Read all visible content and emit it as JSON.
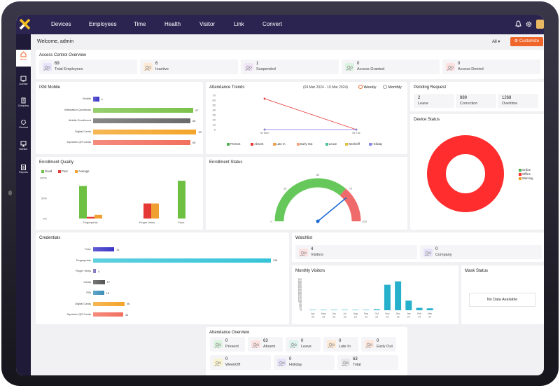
{
  "nav": {
    "devices": "Devices",
    "employees": "Employees",
    "time": "Time",
    "health": "Health",
    "visitor": "Visitor",
    "link": "Link",
    "convert": "Convert"
  },
  "sidebar": {
    "items": [
      {
        "label": "Home"
      },
      {
        "label": "License"
      },
      {
        "label": "Company"
      },
      {
        "label": "General"
      },
      {
        "label": "Monitor"
      },
      {
        "label": "Reports"
      }
    ]
  },
  "header": {
    "greeting": "Welcome, admin",
    "filter": "All",
    "customize": "Customize"
  },
  "access": {
    "title": "Access Control Overview",
    "stats": [
      {
        "value": "69",
        "label": "Total Employees",
        "color": "#e6e3fa",
        "icon": "users-icon"
      },
      {
        "value": "6",
        "label": "Inactive",
        "color": "#fde9d4",
        "icon": "users-icon"
      },
      {
        "value": "1",
        "label": "Suspended",
        "color": "#f0e4f7",
        "icon": "users-icon"
      },
      {
        "value": "0",
        "label": "Access Granted",
        "color": "#dcf4df",
        "icon": "users-icon"
      },
      {
        "value": "0",
        "label": "Access Denied",
        "color": "#fde1e1",
        "icon": "users-icon"
      }
    ]
  },
  "ixm": {
    "title": "IXM Mobile",
    "chart_data": {
      "type": "bar",
      "orientation": "horizontal",
      "categories": [
        "Mobile",
        "Attestation Questions",
        "Mobile Enrollment",
        "Digital Cards",
        "Dynamic QR Cards"
      ],
      "values": [
        4,
        67,
        65,
        69,
        65
      ],
      "xlim": [
        0,
        80
      ],
      "colors": [
        "#3b35c6",
        "#7cc24a",
        "#6a6a6a",
        "#f4a52a",
        "#f26f5f"
      ]
    }
  },
  "attendance": {
    "title": "Attendance Trends",
    "range": "(04 Mar 2024 - 10 Mar 2024)",
    "toggle": [
      "Weekly",
      "Monthly"
    ],
    "chart_data": {
      "type": "line",
      "x": [
        "04 Mon",
        "05 Tue"
      ],
      "ylim": [
        0,
        70
      ],
      "yticks": [
        "70",
        "60",
        "50",
        "40",
        "30",
        "20",
        "10",
        "0"
      ],
      "series": [
        {
          "name": "Present",
          "values": [
            0,
            0
          ],
          "color": "#4caf50"
        },
        {
          "name": "Absent",
          "values": [
            63,
            0
          ],
          "color": "#e53935"
        },
        {
          "name": "Late In",
          "values": [
            0,
            0
          ],
          "color": "#f0a050"
        },
        {
          "name": "Early Out",
          "values": [
            0,
            0
          ],
          "color": "#f4a07a"
        },
        {
          "name": "Leave",
          "values": [
            0,
            0
          ],
          "color": "#4fc3a0"
        },
        {
          "name": "WeekOff",
          "values": [
            0,
            0
          ],
          "color": "#e0c040"
        },
        {
          "name": "Holiday",
          "values": [
            0,
            0
          ],
          "color": "#8888ee"
        }
      ]
    }
  },
  "pending": {
    "title": "Pending Request",
    "items": [
      {
        "value": "2",
        "label": "Leave"
      },
      {
        "value": "889",
        "label": "Correction"
      },
      {
        "value": "1268",
        "label": "Overtime"
      }
    ]
  },
  "device": {
    "title": "Device Status",
    "chart_data": {
      "type": "pie",
      "labels": [
        "Online",
        "Offline",
        "Warning"
      ],
      "values": [
        0,
        100,
        0
      ],
      "colors": [
        "#4caf50",
        "#ff2d2d",
        "#f0a030"
      ]
    }
  },
  "enroll": {
    "title": "Enrollment Quality",
    "chart_data": {
      "type": "bar",
      "categories": [
        "Fingerprints",
        "Finger Veins",
        "Face"
      ],
      "yticks": [
        "100%",
        "50%",
        "0%"
      ],
      "ylim": [
        0,
        100
      ],
      "series": [
        {
          "name": "Good",
          "values": [
            80,
            0,
            93
          ],
          "color": "#6dc041"
        },
        {
          "name": "Poor",
          "values": [
            4,
            37,
            0
          ],
          "color": "#e53935"
        },
        {
          "name": "Average",
          "values": [
            9,
            37,
            0
          ],
          "color": "#f0a030"
        }
      ]
    }
  },
  "estatus": {
    "title": "Enrollment Status",
    "chart_data": {
      "type": "gauge",
      "value": 78,
      "min": 0,
      "max": 100,
      "ticks": [
        "0",
        "25",
        "50",
        "75",
        "100"
      ]
    }
  },
  "cred": {
    "title": "Credentials",
    "chart_data": {
      "type": "bar",
      "orientation": "horizontal",
      "categories": [
        "Face",
        "Fingerprints",
        "Finger Veins",
        "Cards",
        "PIN",
        "Digital Cards",
        "Dynamic QR Cards"
      ],
      "values": [
        31,
        261,
        4,
        17,
        16,
        46,
        44
      ],
      "xlim": [
        0,
        270
      ],
      "colors": [
        "#3b35c6",
        "#36c4d8",
        "#7b6fb8",
        "#555555",
        "#3a8fb8",
        "#f4a52a",
        "#f26f5f"
      ]
    }
  },
  "watch": {
    "title": "Watchlist",
    "stats": [
      {
        "value": "4",
        "label": "Visitors",
        "color": "#fde1e1",
        "icon": "users-icon"
      },
      {
        "value": "0",
        "label": "Company",
        "color": "#e6e3fa",
        "icon": "building-icon"
      }
    ]
  },
  "monthly": {
    "title": "Monthly Visitors",
    "chart_data": {
      "type": "bar",
      "categories": [
        "Apr 23",
        "May 23",
        "Jun 23",
        "Jul 23",
        "Aug 23",
        "Sep 23",
        "Oct 23",
        "Nov 23",
        "Dec 23",
        "Jan 24",
        "Feb 24",
        "Mar 24"
      ],
      "values": [
        0,
        0,
        0,
        0,
        0,
        0,
        10,
        265,
        300,
        100,
        25,
        20
      ],
      "ylim": [
        0,
        320
      ],
      "yticks": [
        "320",
        "300",
        "280",
        "260",
        "240",
        "220",
        "200",
        "180",
        "160",
        "140",
        "120",
        "100",
        "80",
        "60",
        "40",
        "20",
        "0"
      ],
      "color": "#26b0cc"
    }
  },
  "mask": {
    "title": "Mask Status",
    "empty": "No Data Available"
  },
  "aover": {
    "title": "Attendance Overview",
    "stats": [
      {
        "value": "0",
        "label": "Present",
        "color": "#dcf4df",
        "icon": "users-icon"
      },
      {
        "value": "63",
        "label": "Absent",
        "color": "#fde1e1",
        "icon": "users-icon"
      },
      {
        "value": "0",
        "label": "Leave",
        "color": "#dcf4ec",
        "icon": "users-icon"
      },
      {
        "value": "0",
        "label": "Late In",
        "color": "#fde9d4",
        "icon": "users-icon"
      },
      {
        "value": "0",
        "label": "Early Out",
        "color": "#fde6dc",
        "icon": "users-icon"
      },
      {
        "value": "0",
        "label": "WeekOff",
        "color": "#faf3cf",
        "icon": "users-icon"
      },
      {
        "value": "0",
        "label": "Holiday",
        "color": "#e6e3fa",
        "icon": "users-icon"
      },
      {
        "value": "63",
        "label": "Total",
        "color": "#e8e8ea",
        "icon": "users-icon"
      }
    ]
  }
}
